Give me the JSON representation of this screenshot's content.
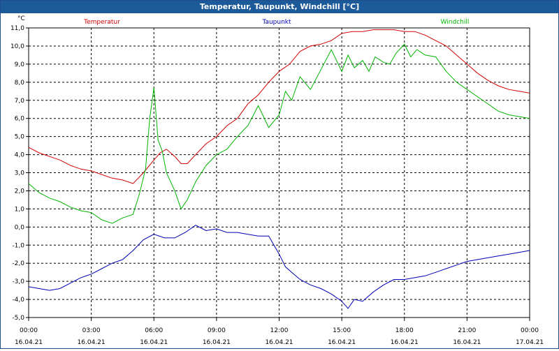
{
  "window": {
    "title": "Temperatur, Taupunkt, Windchill [°C]"
  },
  "colors": {
    "temperature": "#d40000",
    "dewpoint": "#0000b4",
    "windchill": "#00b400",
    "grid": "#000000",
    "background": "#ffffff"
  },
  "chart_data": {
    "type": "line",
    "title": "Temperatur, Taupunkt, Windchill [°C]",
    "ylabel": "°C",
    "ylim": [
      -5.0,
      11.0
    ],
    "yticks": [
      "11,0",
      "10,0",
      "9,0",
      "8,0",
      "7,0",
      "6,0",
      "5,0",
      "4,0",
      "3,0",
      "2,0",
      "1,0",
      "0,0",
      "-1,0",
      "-2,0",
      "-3,0",
      "-4,0",
      "-5,0"
    ],
    "xlim": [
      0,
      24
    ],
    "xticks": [
      {
        "time": "00:00",
        "date": "16.04.21"
      },
      {
        "time": "03:00",
        "date": "16.04.21"
      },
      {
        "time": "06:00",
        "date": "16.04.21"
      },
      {
        "time": "09:00",
        "date": "16.04.21"
      },
      {
        "time": "12:00",
        "date": "16.04.21"
      },
      {
        "time": "15:00",
        "date": "16.04.21"
      },
      {
        "time": "18:00",
        "date": "16.04.21"
      },
      {
        "time": "21:00",
        "date": "16.04.21"
      },
      {
        "time": "00:00",
        "date": "17.04.21"
      }
    ],
    "series": [
      {
        "name": "Temperatur",
        "color": "#d40000",
        "x": [
          0,
          0.5,
          1,
          1.5,
          2,
          2.5,
          3,
          3.5,
          4,
          4.5,
          5,
          5.5,
          6,
          6.3,
          6.6,
          7,
          7.3,
          7.6,
          8,
          8.5,
          9,
          9.5,
          10,
          10.5,
          11,
          11.5,
          12,
          12.5,
          13,
          13.5,
          14,
          14.5,
          15,
          15.5,
          16,
          16.5,
          17,
          17.5,
          18,
          18.5,
          19,
          19.5,
          20,
          20.5,
          21,
          21.5,
          22,
          22.5,
          23,
          23.5,
          24
        ],
        "values": [
          4.4,
          4.1,
          3.9,
          3.7,
          3.4,
          3.2,
          3.1,
          2.9,
          2.7,
          2.6,
          2.4,
          3.0,
          3.7,
          4.1,
          4.3,
          3.9,
          3.5,
          3.5,
          4.0,
          4.6,
          5.0,
          5.6,
          6.0,
          6.8,
          7.3,
          8.0,
          8.6,
          9.0,
          9.7,
          10.0,
          10.1,
          10.3,
          10.7,
          10.8,
          10.8,
          10.9,
          10.9,
          10.9,
          10.8,
          10.8,
          10.6,
          10.3,
          10.0,
          9.5,
          9.0,
          8.5,
          8.1,
          7.8,
          7.6,
          7.5,
          7.4
        ]
      },
      {
        "name": "Taupunkt",
        "color": "#0000b4",
        "x": [
          0,
          0.5,
          1,
          1.5,
          2,
          2.5,
          3,
          3.5,
          4,
          4.5,
          5,
          5.5,
          6,
          6.5,
          7,
          7.5,
          8,
          8.5,
          9,
          9.5,
          10,
          10.5,
          11,
          11.5,
          12,
          12.3,
          12.6,
          13,
          13.5,
          14,
          14.5,
          15,
          15.3,
          15.6,
          16,
          16.5,
          17,
          17.5,
          18,
          18.5,
          19,
          19.5,
          20,
          20.5,
          21,
          21.5,
          22,
          22.5,
          23,
          23.5,
          24
        ],
        "values": [
          -3.3,
          -3.4,
          -3.5,
          -3.4,
          -3.1,
          -2.8,
          -2.6,
          -2.3,
          -2.0,
          -1.8,
          -1.3,
          -0.7,
          -0.4,
          -0.6,
          -0.6,
          -0.3,
          0.1,
          -0.2,
          -0.1,
          -0.3,
          -0.3,
          -0.4,
          -0.5,
          -0.5,
          -1.5,
          -2.2,
          -2.5,
          -2.9,
          -3.2,
          -3.4,
          -3.7,
          -4.1,
          -4.5,
          -4.0,
          -4.1,
          -3.6,
          -3.2,
          -2.9,
          -2.9,
          -2.8,
          -2.7,
          -2.5,
          -2.3,
          -2.1,
          -1.9,
          -1.8,
          -1.7,
          -1.6,
          -1.5,
          -1.4,
          -1.3
        ]
      },
      {
        "name": "Windchill",
        "color": "#00b400",
        "x": [
          0,
          0.5,
          1,
          1.5,
          2,
          2.5,
          3,
          3.5,
          4,
          4.5,
          5,
          5.3,
          5.6,
          5.8,
          6.0,
          6.2,
          6.4,
          6.6,
          7,
          7.3,
          7.6,
          8,
          8.5,
          9,
          9.5,
          10,
          10.5,
          11,
          11.5,
          12,
          12.3,
          12.6,
          13,
          13.5,
          14,
          14.5,
          15,
          15.3,
          15.6,
          16,
          16.3,
          16.6,
          17,
          17.3,
          17.6,
          18,
          18.3,
          18.6,
          19,
          19.5,
          20,
          20.5,
          21,
          21.5,
          22,
          22.5,
          23,
          23.5,
          24
        ],
        "values": [
          2.4,
          1.9,
          1.6,
          1.4,
          1.1,
          0.9,
          0.8,
          0.4,
          0.2,
          0.5,
          0.7,
          1.8,
          3.2,
          6.0,
          7.7,
          4.8,
          4.2,
          3.0,
          2.0,
          1.0,
          1.5,
          2.5,
          3.4,
          4.0,
          4.3,
          5.0,
          5.6,
          6.7,
          5.5,
          6.2,
          7.5,
          7.0,
          8.3,
          7.6,
          8.7,
          9.8,
          8.6,
          9.5,
          8.8,
          9.2,
          8.6,
          9.4,
          9.1,
          9.0,
          9.6,
          10.1,
          9.4,
          9.8,
          9.5,
          9.4,
          8.6,
          8.0,
          7.6,
          7.2,
          6.8,
          6.4,
          6.2,
          6.1,
          6.0
        ]
      }
    ]
  }
}
